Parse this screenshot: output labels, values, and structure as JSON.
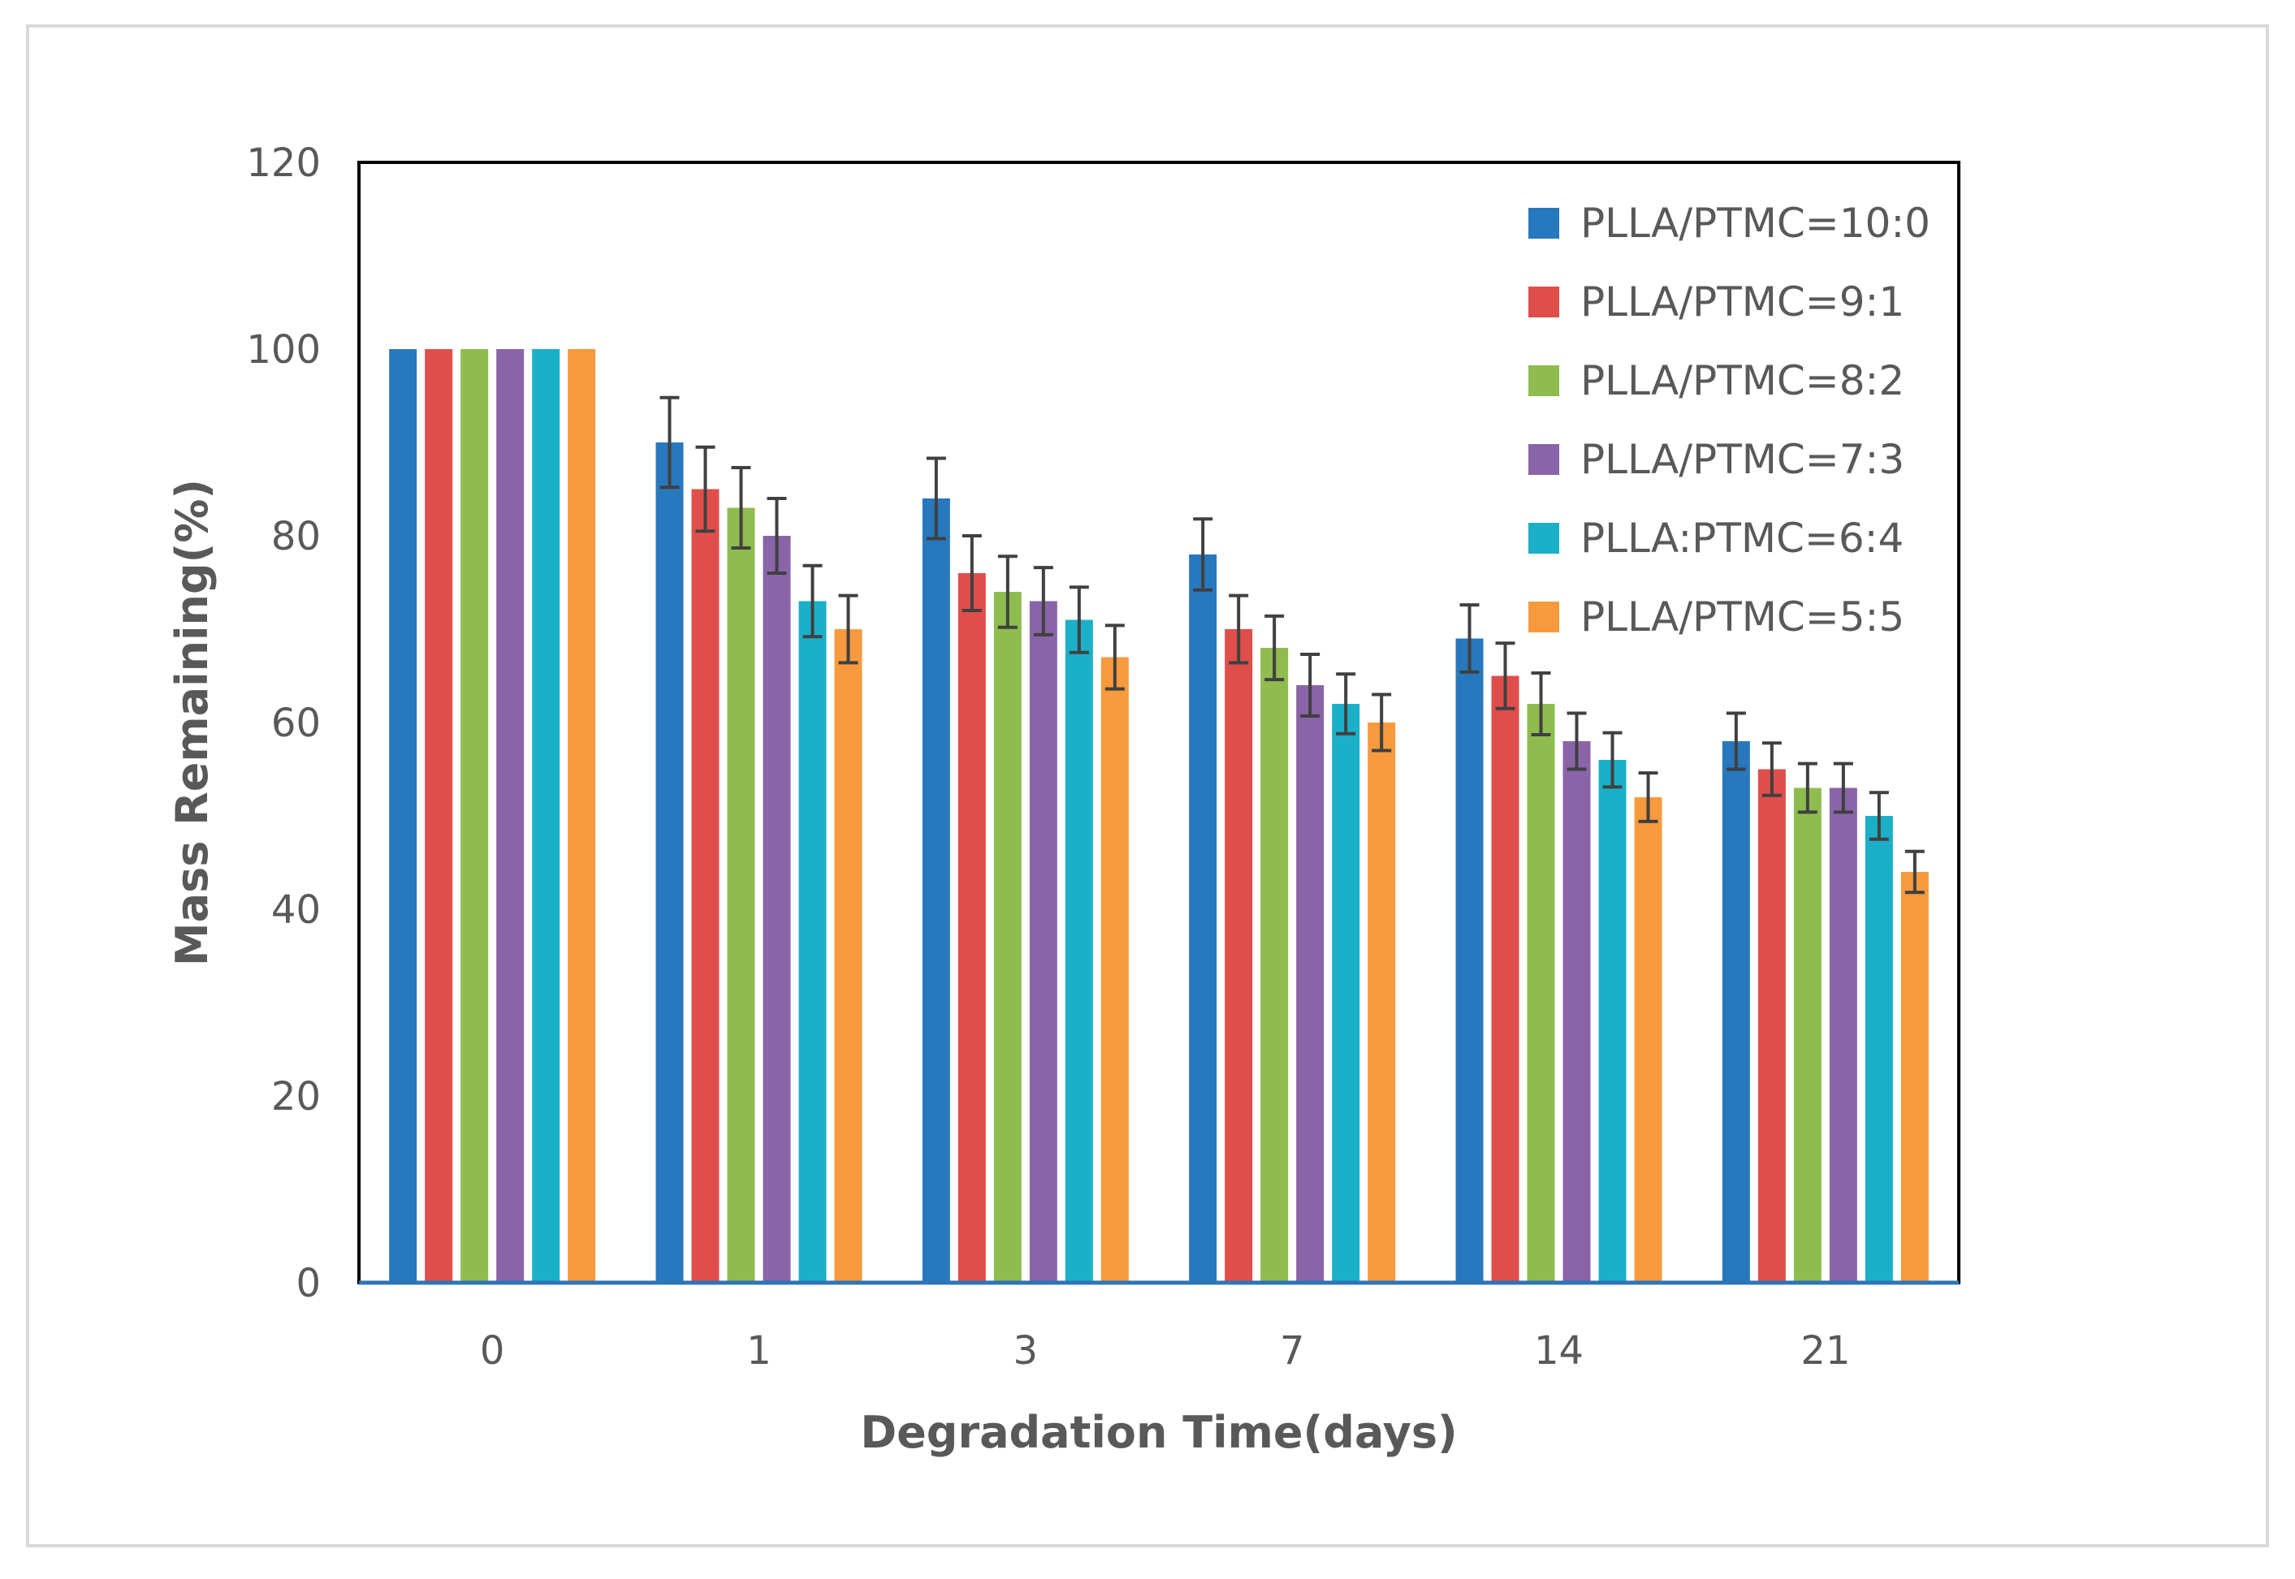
{
  "chart_data": {
    "type": "bar",
    "xlabel": "Degradation Time(days)",
    "ylabel": "Mass Remaining(%)",
    "ylim": [
      0,
      120
    ],
    "yticks": [
      0,
      20,
      40,
      60,
      80,
      100,
      120
    ],
    "categories": [
      "0",
      "1",
      "3",
      "7",
      "14",
      "21"
    ],
    "grid": false,
    "legend_position": "top-right",
    "error_bars": true,
    "series": [
      {
        "name": "PLLA/PTMC=10:0",
        "color": "#2878be",
        "values": [
          100,
          90,
          84,
          78,
          69,
          58
        ],
        "errors": [
          0,
          4.8,
          4.3,
          3.8,
          3.6,
          3.0
        ]
      },
      {
        "name": "PLLA/PTMC=9:1",
        "color": "#e04e4b",
        "values": [
          100,
          85,
          76,
          70,
          65,
          55
        ],
        "errors": [
          0,
          4.5,
          4.0,
          3.6,
          3.5,
          2.8
        ]
      },
      {
        "name": "PLLA/PTMC=8:2",
        "color": "#8fbc4f",
        "values": [
          100,
          83,
          74,
          68,
          62,
          53
        ],
        "errors": [
          0,
          4.3,
          3.8,
          3.4,
          3.3,
          2.6
        ]
      },
      {
        "name": "PLLA/PTMC=7:3",
        "color": "#8a64a8",
        "values": [
          100,
          80,
          73,
          64,
          58,
          53
        ],
        "errors": [
          0,
          4.0,
          3.6,
          3.3,
          3.0,
          2.6
        ]
      },
      {
        "name": "PLLA:PTMC=6:4",
        "color": "#1bb0c8",
        "values": [
          100,
          73,
          71,
          62,
          56,
          50
        ],
        "errors": [
          0,
          3.8,
          3.5,
          3.2,
          2.9,
          2.5
        ]
      },
      {
        "name": "PLLA/PTMC=5:5",
        "color": "#f79a3e",
        "values": [
          100,
          70,
          67,
          60,
          52,
          44
        ],
        "errors": [
          0,
          3.6,
          3.4,
          3.0,
          2.6,
          2.2
        ]
      }
    ]
  }
}
